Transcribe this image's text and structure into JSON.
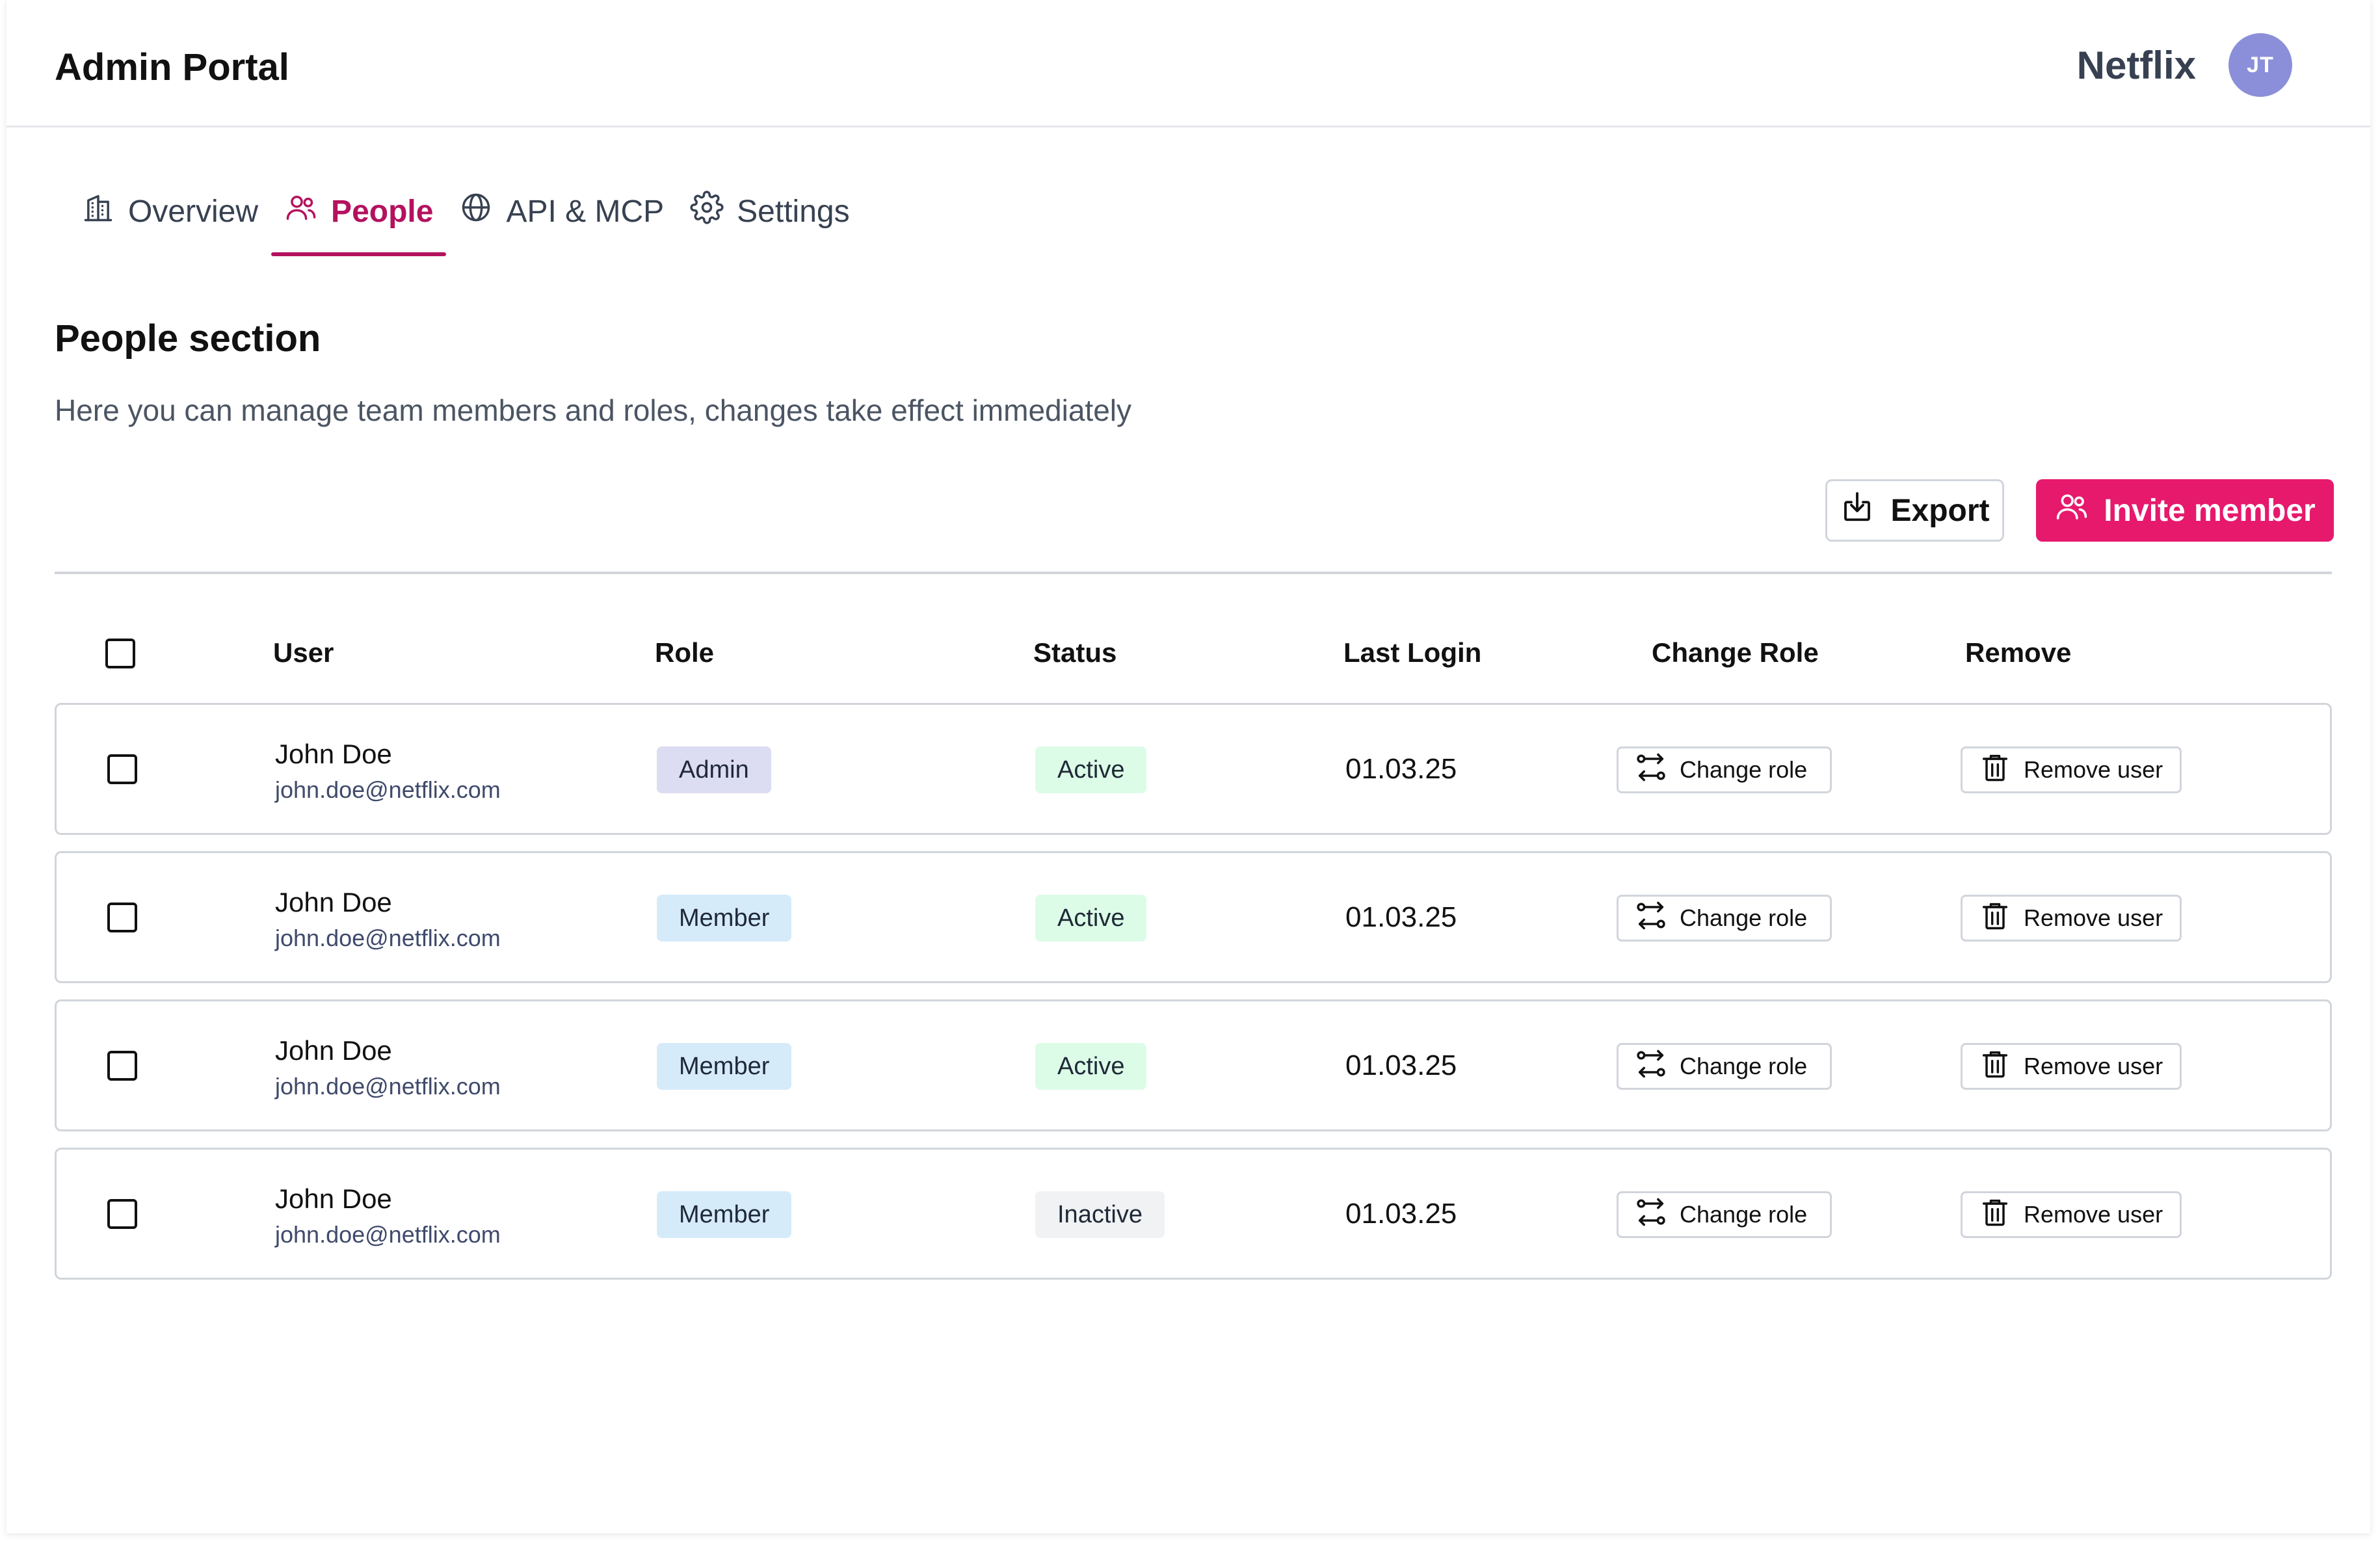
{
  "header": {
    "title": "Admin Portal",
    "org": "Netflix",
    "avatar_initials": "JT"
  },
  "tabs": [
    {
      "label": "Overview",
      "icon": "building-icon",
      "active": false
    },
    {
      "label": "People",
      "icon": "users-icon",
      "active": true
    },
    {
      "label": "API & MCP",
      "icon": "globe-icon",
      "active": false
    },
    {
      "label": "Settings",
      "icon": "gear-icon",
      "active": false
    }
  ],
  "section": {
    "title": "People section",
    "description": "Here you can manage team members and roles, changes take effect immediately"
  },
  "actions": {
    "export_label": "Export",
    "invite_label": "Invite member"
  },
  "table": {
    "headers": {
      "user": "User",
      "role": "Role",
      "status": "Status",
      "last_login": "Last Login",
      "change_role": "Change Role",
      "remove": "Remove"
    },
    "rows": [
      {
        "name": "John Doe",
        "email": "john.doe@netflix.com",
        "role": "Admin",
        "status": "Active",
        "last_login": "01.03.25",
        "change_label": "Change role",
        "remove_label": "Remove user"
      },
      {
        "name": "John Doe",
        "email": "john.doe@netflix.com",
        "role": "Member",
        "status": "Active",
        "last_login": "01.03.25",
        "change_label": "Change role",
        "remove_label": "Remove user"
      },
      {
        "name": "John Doe",
        "email": "john.doe@netflix.com",
        "role": "Member",
        "status": "Active",
        "last_login": "01.03.25",
        "change_label": "Change role",
        "remove_label": "Remove user"
      },
      {
        "name": "John Doe",
        "email": "john.doe@netflix.com",
        "role": "Member",
        "status": "Inactive",
        "last_login": "01.03.25",
        "change_label": "Change role",
        "remove_label": "Remove user"
      }
    ]
  },
  "colors": {
    "accent": "#e6196d",
    "active_tab": "#b3125e",
    "avatar": "#8b8fd9"
  }
}
